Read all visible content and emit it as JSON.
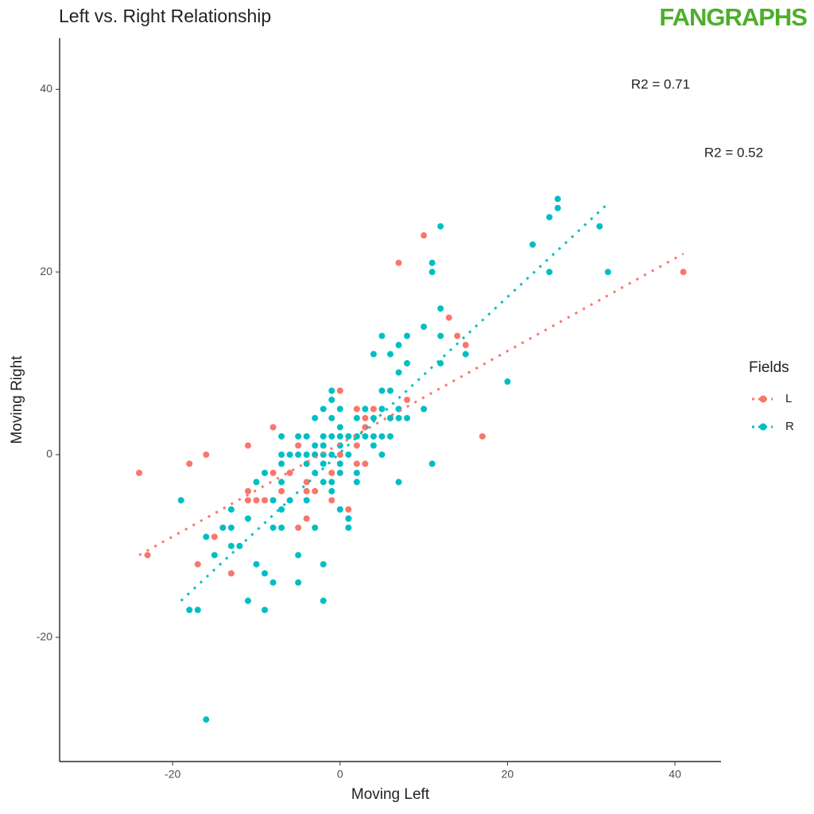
{
  "chart_data": {
    "type": "scatter",
    "title": "Left vs. Right Relationship",
    "logo": "FANGRAPHS",
    "x_label": "Moving Left",
    "y_label": "Moving Right",
    "xlim": [
      -33.5,
      45.5
    ],
    "ylim": [
      -33.6,
      45.6
    ],
    "xticks": [
      -20,
      0,
      20,
      40
    ],
    "yticks": [
      -20,
      0,
      20,
      40
    ],
    "grid": false,
    "legend_title": "Fields",
    "legend": "right",
    "annotations": [
      "R2 = 0.71",
      "R2 = 0.52"
    ],
    "series": [
      {
        "name": "L",
        "color": "#F8766D",
        "x": [
          -24,
          -23,
          -18,
          -17,
          -16,
          -15,
          -13,
          -11,
          -11,
          -11,
          -10,
          -9,
          -8,
          -8,
          -7,
          -5,
          -5,
          -4,
          -4,
          -4,
          -3,
          -3,
          -2,
          -1,
          0,
          0,
          1,
          1,
          2,
          2,
          3,
          3,
          4,
          6,
          7,
          8,
          10,
          13,
          14,
          15,
          17,
          41,
          3,
          2,
          -6,
          -1
        ],
        "y": [
          -2,
          -11,
          -1,
          -12,
          0,
          -9,
          -13,
          1,
          -4,
          -5,
          -5,
          -5,
          3,
          -2,
          -4,
          -8,
          1,
          -3,
          -4,
          -7,
          0,
          -4,
          1,
          -5,
          7,
          0,
          -6,
          -7,
          5,
          -1,
          4,
          -1,
          5,
          4,
          21,
          6,
          24,
          15,
          13,
          12,
          2,
          20,
          3,
          1,
          -2,
          -2
        ],
        "trend": {
          "x": [
            -24,
            41
          ],
          "y": [
            -11,
            22
          ]
        }
      },
      {
        "name": "R",
        "color": "#00BFC4",
        "x": [
          -19,
          -18,
          -17,
          -16,
          -16,
          -15,
          -14,
          -13,
          -13,
          -13,
          -12,
          -11,
          -11,
          -10,
          -10,
          -9,
          -9,
          -9,
          -8,
          -8,
          -8,
          -7,
          -7,
          -7,
          -7,
          -7,
          -7,
          -6,
          -6,
          -5,
          -5,
          -5,
          -5,
          -4,
          -4,
          -4,
          -4,
          -3,
          -3,
          -3,
          -3,
          -3,
          -2,
          -2,
          -2,
          -2,
          -2,
          -2,
          -2,
          -2,
          -1,
          -1,
          -1,
          -1,
          -1,
          -1,
          -1,
          0,
          0,
          0,
          0,
          0,
          0,
          0,
          1,
          1,
          1,
          1,
          2,
          2,
          2,
          2,
          3,
          3,
          4,
          4,
          4,
          4,
          5,
          5,
          5,
          5,
          5,
          6,
          6,
          6,
          6,
          7,
          7,
          7,
          7,
          7,
          8,
          8,
          8,
          10,
          10,
          11,
          11,
          11,
          12,
          12,
          12,
          12,
          15,
          20,
          23,
          25,
          25,
          26,
          26,
          31,
          32
        ],
        "y": [
          -5,
          -17,
          -17,
          -9,
          -29,
          -11,
          -8,
          -6,
          -8,
          -10,
          -10,
          -7,
          -16,
          -3,
          -12,
          -2,
          -13,
          -17,
          -5,
          -8,
          -14,
          2,
          0,
          -1,
          -3,
          -6,
          -8,
          0,
          -5,
          2,
          0,
          -11,
          -14,
          2,
          0,
          -1,
          -5,
          4,
          1,
          0,
          -2,
          -8,
          5,
          2,
          1,
          0,
          -1,
          -3,
          -12,
          -16,
          7,
          6,
          4,
          2,
          0,
          -3,
          -4,
          5,
          3,
          2,
          1,
          -1,
          -2,
          -6,
          2,
          0,
          -8,
          -7,
          4,
          2,
          -2,
          -3,
          5,
          2,
          11,
          4,
          2,
          1,
          13,
          7,
          5,
          2,
          0,
          11,
          7,
          4,
          2,
          12,
          9,
          5,
          4,
          -3,
          13,
          10,
          4,
          14,
          5,
          21,
          20,
          -1,
          25,
          16,
          13,
          10,
          11,
          8,
          23,
          26,
          20,
          28,
          27,
          25,
          20
        ],
        "trend": {
          "x": [
            -19,
            32
          ],
          "y": [
            -16,
            27.5
          ]
        }
      }
    ]
  }
}
